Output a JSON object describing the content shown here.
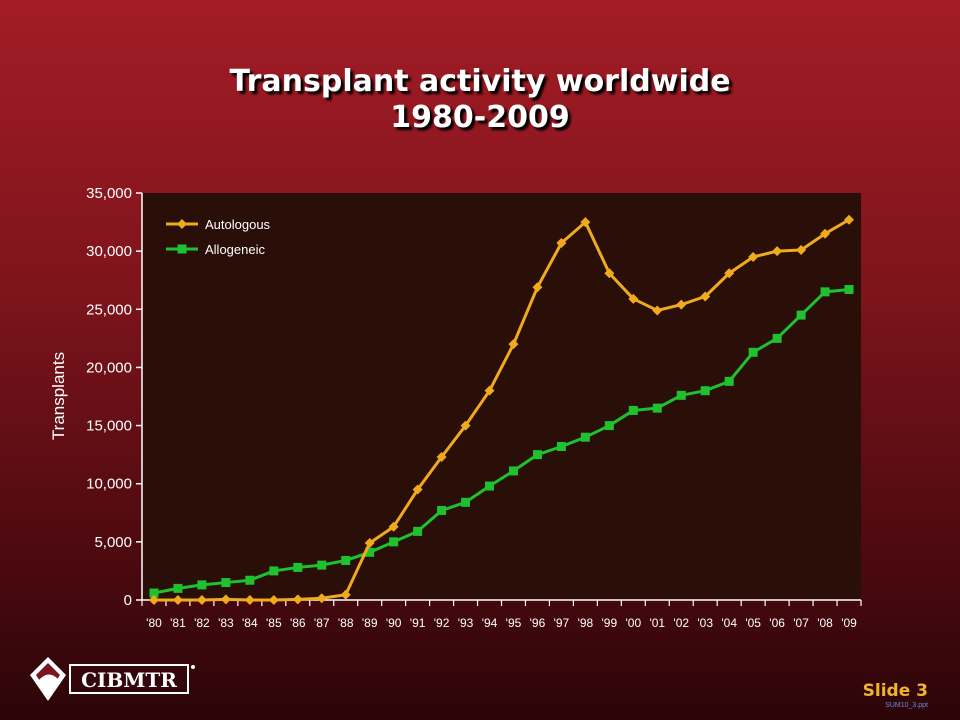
{
  "slide": {
    "title_line1": "Transplant activity worldwide",
    "title_line2": "1980-2009",
    "slide_number": "Slide 3",
    "file_code": "SUM10_3.ppt",
    "logo_text": "CIBMTR"
  },
  "colors": {
    "background": "#8b1720",
    "plot_background": "#2a0e08",
    "autologous": "#f0aa1e",
    "allogeneic": "#1fc12e"
  },
  "chart_data": {
    "type": "line",
    "title": "Transplant activity worldwide 1980-2009",
    "ylabel": "Transplants",
    "xlabel": "",
    "ylim": [
      0,
      35000
    ],
    "yticks": [
      0,
      5000,
      10000,
      15000,
      20000,
      25000,
      30000,
      35000
    ],
    "ytick_labels": [
      "0",
      "5,000",
      "10,000",
      "15,000",
      "20,000",
      "25,000",
      "30,000",
      "35,000"
    ],
    "categories": [
      "'80",
      "'81",
      "'82",
      "'83",
      "'84",
      "'85",
      "'86",
      "'87",
      "'88",
      "'89",
      "'90",
      "'91",
      "'92",
      "'93",
      "'94",
      "'95",
      "'96",
      "'97",
      "'98",
      "'99",
      "'00",
      "'01",
      "'02",
      "'03",
      "'04",
      "'05",
      "'06",
      "'07",
      "'08",
      "'09"
    ],
    "legend_position": "top-left",
    "grid": false,
    "series": [
      {
        "name": "Autologous",
        "marker": "diamond",
        "color": "#f0aa1e",
        "values": [
          0,
          0,
          0,
          50,
          0,
          0,
          50,
          150,
          450,
          4900,
          6300,
          9500,
          12300,
          15000,
          18000,
          22000,
          26900,
          30700,
          32500,
          28100,
          25900,
          24900,
          25400,
          26100,
          28100,
          29500,
          30000,
          30100,
          31500,
          32700
        ]
      },
      {
        "name": "Allogeneic",
        "marker": "square",
        "color": "#1fc12e",
        "values": [
          600,
          1000,
          1300,
          1500,
          1700,
          2500,
          2800,
          3000,
          3400,
          4100,
          5000,
          5900,
          7700,
          8400,
          9800,
          11100,
          12500,
          13200,
          14000,
          15000,
          16300,
          16500,
          17600,
          18000,
          18800,
          21300,
          22500,
          24500,
          26500,
          26700
        ]
      }
    ]
  }
}
